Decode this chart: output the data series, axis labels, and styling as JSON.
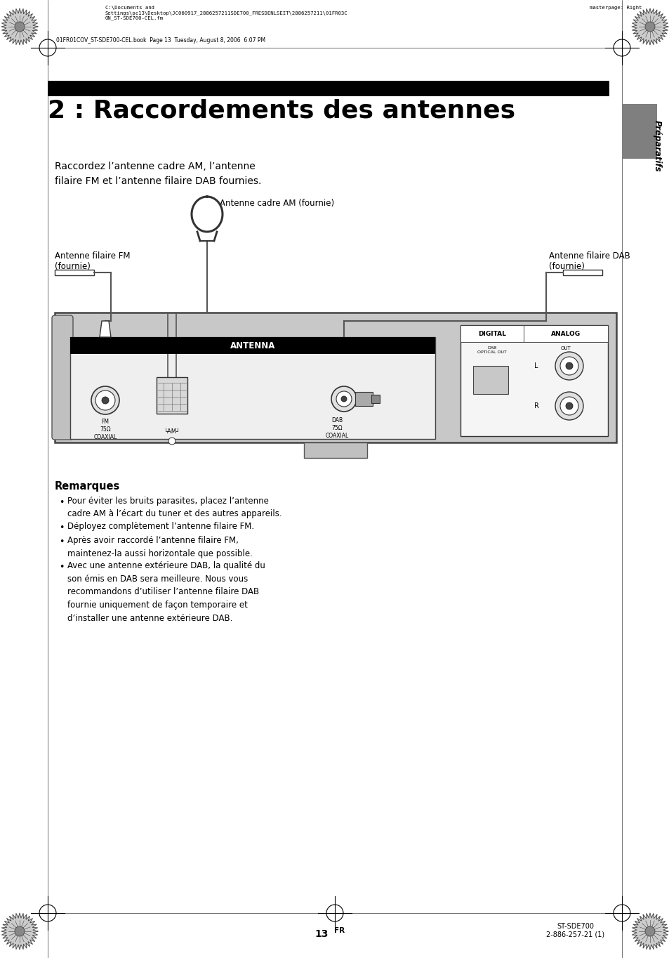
{
  "page_bg": "#ffffff",
  "header_filepath": "C:\\Documents and\nSettings\\pc13\\Desktop\\JC060917_2886257211SDE700_FRESDENLSEIT\\2886257211\\01FR03C\nON_ST-SDE700-CEL.fm",
  "header_masterpage": "masterpage: Right",
  "header_book": "01FR01COV_ST-SDE700-CEL.book  Page 13  Tuesday, August 8, 2006  6:07 PM",
  "title_bar_color": "#000000",
  "title_text": "2 : Raccordements des antennes",
  "tab_color": "#7f7f7f",
  "tab_text": "Préparatifs",
  "intro_text": "Raccordez l’antenne cadre AM, l’antenne\nfilaire FM et l’antenne filaire DAB fournies.",
  "remarks_title": "Remarques",
  "remarks_bullets": [
    "Pour éviter les bruits parasites, placez l’antenne\ncadre AM à l’écart du tuner et des autres appareils.",
    "Déployez complètement l’antenne filaire FM.",
    "Après avoir raccordé l’antenne filaire FM,\nmaintenez-la aussi horizontale que possible.",
    "Avec une antenne extérieure DAB, la qualité du\nson émis en DAB sera meilleure. Nous vous\nrecommandons d’utiliser l’antenne filaire DAB\nfournie uniquement de façon temporaire et\nd’installer une antenne extérieure DAB."
  ],
  "footer_page": "13",
  "footer_fr": "FR",
  "footer_model": "ST-SDE700\n2-886-257-21 (1)"
}
